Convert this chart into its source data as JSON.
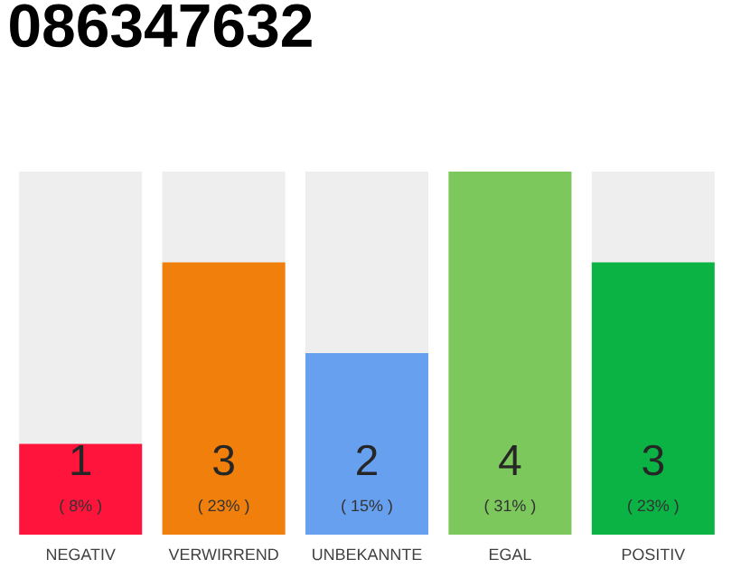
{
  "chart_data": {
    "type": "bar",
    "title": "086347632",
    "categories": [
      "NEGATIV",
      "VERWIRREND",
      "UNBEKANNTE",
      "EGAL",
      "POSITIV"
    ],
    "values": [
      1,
      3,
      2,
      4,
      3
    ],
    "colors": [
      "#ff143c",
      "#f07f0c",
      "#67a0ee",
      "#7dc85c",
      "#0bb345"
    ],
    "data_labels": true,
    "annotations": [
      "( 8% )",
      "( 23% )",
      "( 15% )",
      "( 31% )",
      "( 23% )"
    ]
  }
}
